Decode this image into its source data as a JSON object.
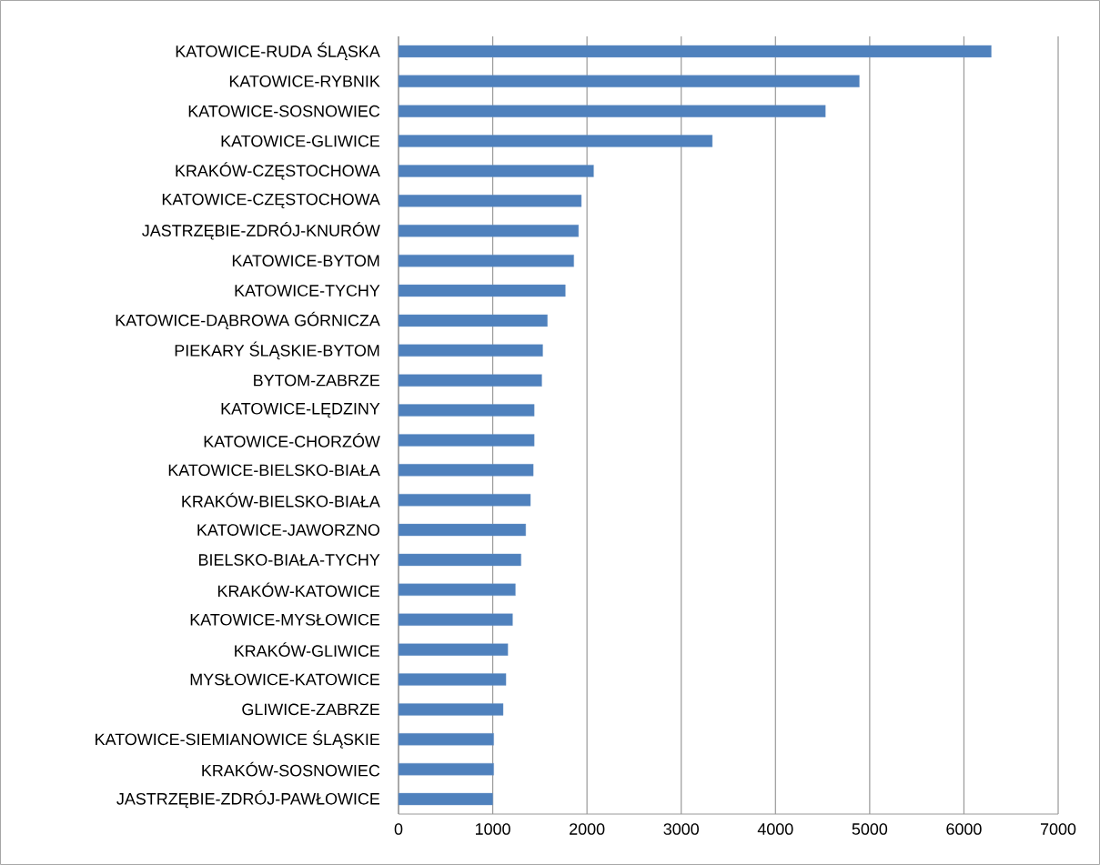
{
  "chart_data": {
    "type": "bar",
    "orientation": "horizontal",
    "categories": [
      "KATOWICE-RUDA ŚLĄSKA",
      "KATOWICE-RYBNIK",
      "KATOWICE-SOSNOWIEC",
      "KATOWICE-GLIWICE",
      "KRAKÓW-CZĘSTOCHOWA",
      "KATOWICE-CZĘSTOCHOWA",
      "JASTRZĘBIE-ZDRÓJ-KNURÓW",
      "KATOWICE-BYTOM",
      "KATOWICE-TYCHY",
      "KATOWICE-DĄBROWA GÓRNICZA",
      "PIEKARY ŚLĄSKIE-BYTOM",
      "BYTOM-ZABRZE",
      "KATOWICE-LĘDZINY",
      "KATOWICE-CHORZÓW",
      "KATOWICE-BIELSKO-BIAŁA",
      "KRAKÓW-BIELSKO-BIAŁA",
      "KATOWICE-JAWORZNO",
      "BIELSKO-BIAŁA-TYCHY",
      "KRAKÓW-KATOWICE",
      "KATOWICE-MYSŁOWICE",
      "KRAKÓW-GLIWICE",
      "MYSŁOWICE-KATOWICE",
      "GLIWICE-ZABRZE",
      "KATOWICE-SIEMIANOWICE ŚLĄSKIE",
      "KRAKÓW-SOSNOWIEC",
      "JASTRZĘBIE-ZDRÓJ-PAWŁOWICE"
    ],
    "values": [
      6290,
      4890,
      4530,
      3330,
      2070,
      1940,
      1910,
      1860,
      1770,
      1580,
      1530,
      1520,
      1440,
      1440,
      1430,
      1400,
      1350,
      1300,
      1240,
      1210,
      1160,
      1140,
      1110,
      1010,
      1010,
      1000
    ],
    "color": "#4f81bd",
    "xlim": [
      0,
      7000
    ],
    "xticks": [
      0,
      1000,
      2000,
      3000,
      4000,
      5000,
      6000,
      7000
    ],
    "grid": "x"
  }
}
